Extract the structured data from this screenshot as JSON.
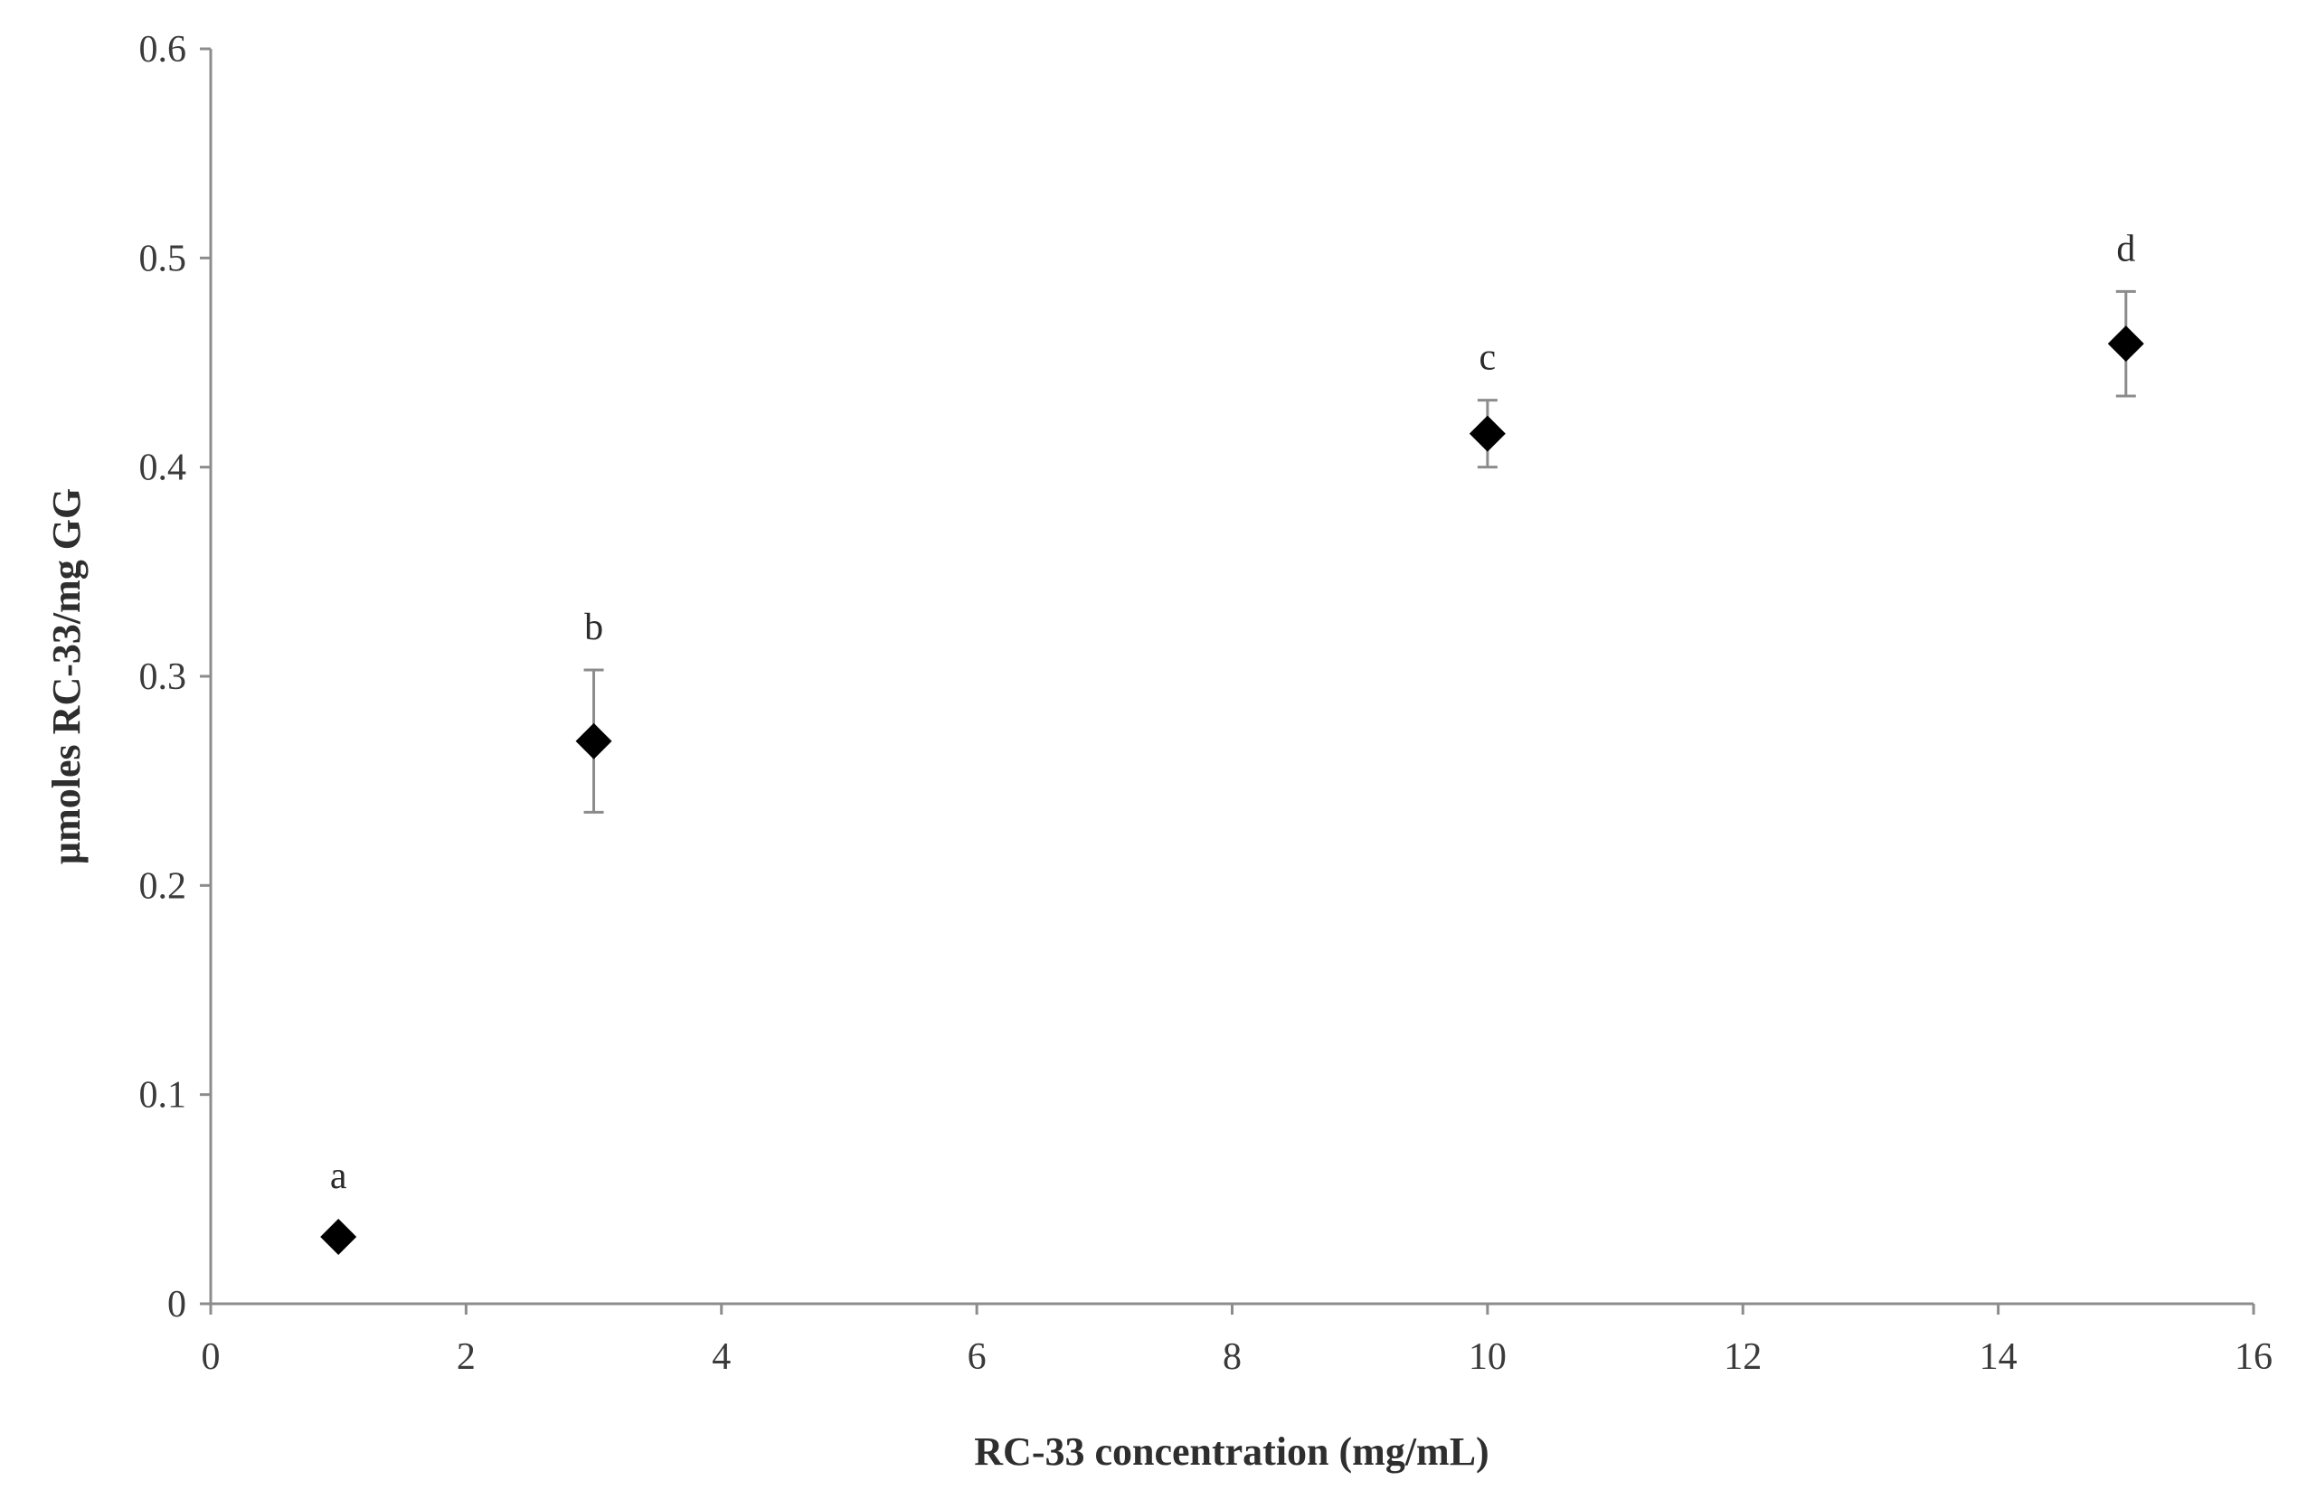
{
  "chart_data": {
    "type": "scatter",
    "title": "",
    "xlabel": "RC-33 concentration (mg/mL)",
    "ylabel": "µmoles RC-33/mg GG",
    "xlim": [
      0,
      16
    ],
    "ylim": [
      0,
      0.6
    ],
    "x_ticks": [
      "0",
      "2",
      "4",
      "6",
      "8",
      "10",
      "12",
      "14",
      "16"
    ],
    "y_ticks": [
      "0",
      "0.1",
      "0.2",
      "0.3",
      "0.4",
      "0.5",
      "0.6"
    ],
    "grid": false,
    "legend": "none",
    "marker": "diamond",
    "series": [
      {
        "points": [
          {
            "x": 1,
            "y": 0.032,
            "err": 0,
            "label": "a"
          },
          {
            "x": 3,
            "y": 0.269,
            "err": 0.034,
            "label": "b"
          },
          {
            "x": 10,
            "y": 0.416,
            "err": 0.016,
            "label": "c"
          },
          {
            "x": 15,
            "y": 0.459,
            "err": 0.025,
            "label": "d"
          }
        ]
      }
    ],
    "colors": {
      "marker": "#000000",
      "axis": "#8c8c8c",
      "errorbar": "#8c8c8c"
    }
  }
}
